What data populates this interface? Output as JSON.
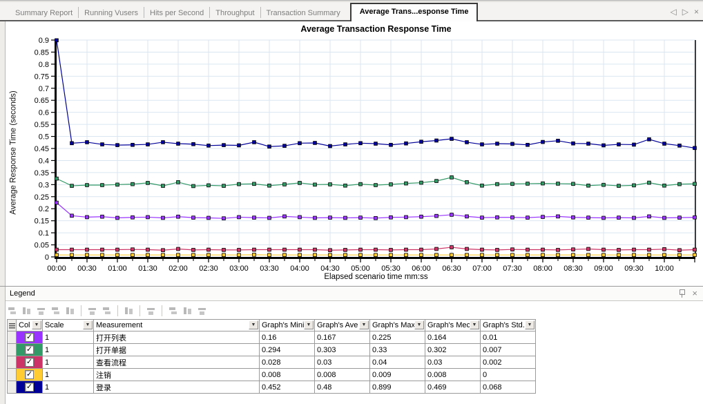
{
  "tabbar": {
    "tabs": [
      {
        "label": "Summary Report",
        "active": false
      },
      {
        "label": "Running Vusers",
        "active": false
      },
      {
        "label": "Hits per Second",
        "active": false
      },
      {
        "label": "Throughput",
        "active": false
      },
      {
        "label": "Transaction Summary",
        "active": false
      },
      {
        "label": "Average Trans...esponse Time",
        "active": true
      }
    ],
    "nav": {
      "prev": "◁",
      "next": "▷",
      "close": "×"
    }
  },
  "chart": {
    "title": "Average Transaction Response Time",
    "ylabel": "Average Response Time (seconds)",
    "xlabel": "Elapsed scenario time mm:ss"
  },
  "chart_data": {
    "type": "line",
    "title": "Average Transaction Response Time",
    "xlabel": "Elapsed scenario time mm:ss",
    "ylabel": "Average Response Time (seconds)",
    "ylim": [
      0,
      0.9
    ],
    "y_tick_step": 0.05,
    "x_interval_seconds": 15,
    "x_tick_labels": [
      "00:00",
      "00:30",
      "01:00",
      "01:30",
      "02:00",
      "02:30",
      "03:00",
      "03:30",
      "04:00",
      "04:30",
      "05:00",
      "05:30",
      "06:00",
      "06:30",
      "07:00",
      "07:30",
      "08:00",
      "08:30",
      "09:00",
      "09:30",
      "10:00"
    ],
    "grid": true,
    "gridline_color": "#d9e6f2",
    "marker": "square",
    "series": [
      {
        "name": "打开列表",
        "color": "#9933ff",
        "values": [
          0.225,
          0.171,
          0.165,
          0.167,
          0.162,
          0.164,
          0.165,
          0.162,
          0.167,
          0.163,
          0.162,
          0.16,
          0.165,
          0.163,
          0.162,
          0.168,
          0.165,
          0.162,
          0.163,
          0.162,
          0.163,
          0.161,
          0.164,
          0.165,
          0.167,
          0.17,
          0.175,
          0.168,
          0.163,
          0.164,
          0.164,
          0.163,
          0.166,
          0.168,
          0.164,
          0.163,
          0.162,
          0.163,
          0.162,
          0.168,
          0.162,
          0.163,
          0.164
        ]
      },
      {
        "name": "打开单据",
        "color": "#339966",
        "values": [
          0.325,
          0.295,
          0.298,
          0.298,
          0.3,
          0.302,
          0.307,
          0.295,
          0.31,
          0.294,
          0.297,
          0.295,
          0.302,
          0.303,
          0.296,
          0.301,
          0.307,
          0.3,
          0.301,
          0.296,
          0.302,
          0.298,
          0.301,
          0.305,
          0.308,
          0.315,
          0.33,
          0.31,
          0.296,
          0.302,
          0.303,
          0.304,
          0.305,
          0.304,
          0.303,
          0.296,
          0.299,
          0.295,
          0.297,
          0.308,
          0.296,
          0.302,
          0.303
        ]
      },
      {
        "name": "查看流程",
        "color": "#cc3366",
        "values": [
          0.03,
          0.03,
          0.03,
          0.03,
          0.03,
          0.031,
          0.03,
          0.028,
          0.033,
          0.029,
          0.03,
          0.029,
          0.029,
          0.03,
          0.03,
          0.03,
          0.03,
          0.03,
          0.028,
          0.029,
          0.03,
          0.03,
          0.029,
          0.03,
          0.03,
          0.033,
          0.04,
          0.033,
          0.03,
          0.029,
          0.031,
          0.03,
          0.03,
          0.029,
          0.031,
          0.033,
          0.03,
          0.029,
          0.03,
          0.03,
          0.032,
          0.028,
          0.03
        ]
      },
      {
        "name": "注销",
        "color": "#ffcc33",
        "values": [
          0.008,
          0.008,
          0.008,
          0.008,
          0.008,
          0.008,
          0.008,
          0.008,
          0.008,
          0.008,
          0.008,
          0.008,
          0.008,
          0.009,
          0.008,
          0.008,
          0.008,
          0.008,
          0.008,
          0.008,
          0.008,
          0.008,
          0.008,
          0.008,
          0.008,
          0.008,
          0.008,
          0.008,
          0.008,
          0.008,
          0.008,
          0.008,
          0.008,
          0.008,
          0.008,
          0.008,
          0.008,
          0.008,
          0.008,
          0.008,
          0.008,
          0.008,
          0.008
        ]
      },
      {
        "name": "登录",
        "color": "#000099",
        "values": [
          0.899,
          0.472,
          0.476,
          0.467,
          0.464,
          0.465,
          0.467,
          0.476,
          0.47,
          0.468,
          0.462,
          0.464,
          0.463,
          0.476,
          0.458,
          0.461,
          0.472,
          0.473,
          0.46,
          0.467,
          0.472,
          0.47,
          0.465,
          0.471,
          0.478,
          0.483,
          0.49,
          0.476,
          0.467,
          0.47,
          0.469,
          0.465,
          0.477,
          0.482,
          0.471,
          0.47,
          0.463,
          0.467,
          0.466,
          0.488,
          0.47,
          0.462,
          0.452
        ]
      }
    ]
  },
  "legend": {
    "title": "Legend",
    "close": "×",
    "toolbar_icons": [
      {
        "name": "configure-measurements-icon"
      },
      {
        "name": "measurement-options-icon"
      },
      {
        "name": "show-measurement-icon"
      },
      {
        "name": "hide-measurement-icon"
      },
      {
        "name": "filter-measurements-icon"
      },
      {
        "name": "sort-ascending-icon"
      },
      {
        "name": "sort-descending-icon"
      },
      {
        "name": "configure-columns-icon"
      },
      {
        "name": "grid-view-icon"
      },
      {
        "name": "copy-icon"
      },
      {
        "name": "save-icon"
      },
      {
        "name": "export-icon"
      }
    ],
    "table": {
      "columns": [
        "Col",
        "Scale",
        "Measurement",
        "Graph's Mini",
        "Graph's Ave",
        "Graph's Max",
        "Graph's Mec",
        "Graph's Std."
      ],
      "rows": [
        {
          "color": "#9933ff",
          "checked": true,
          "scale": "1",
          "measurement": "打开列表",
          "min": "0.16",
          "ave": "0.167",
          "max": "0.225",
          "med": "0.164",
          "std": "0.01"
        },
        {
          "color": "#339966",
          "checked": true,
          "scale": "1",
          "measurement": "打开单据",
          "min": "0.294",
          "ave": "0.303",
          "max": "0.33",
          "med": "0.302",
          "std": "0.007"
        },
        {
          "color": "#cc3366",
          "checked": true,
          "scale": "1",
          "measurement": "查看流程",
          "min": "0.028",
          "ave": "0.03",
          "max": "0.04",
          "med": "0.03",
          "std": "0.002"
        },
        {
          "color": "#ffcc33",
          "checked": true,
          "scale": "1",
          "measurement": "注销",
          "min": "0.008",
          "ave": "0.008",
          "max": "0.009",
          "med": "0.008",
          "std": "0"
        },
        {
          "color": "#000099",
          "checked": true,
          "scale": "1",
          "measurement": "登录",
          "min": "0.452",
          "ave": "0.48",
          "max": "0.899",
          "med": "0.469",
          "std": "0.068"
        }
      ]
    }
  }
}
